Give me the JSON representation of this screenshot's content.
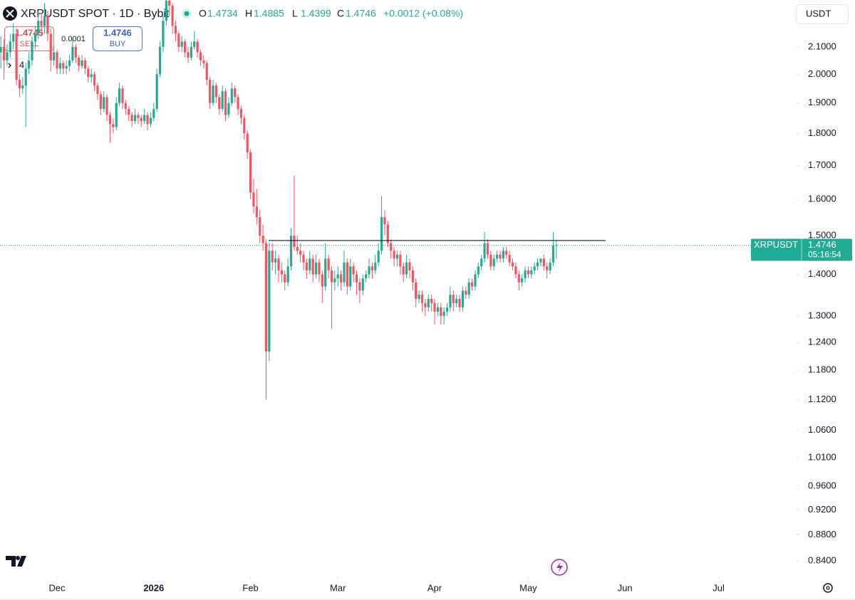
{
  "header": {
    "title": "XRPUSDT SPOT · 1D · Bybit",
    "ohlc_labels": [
      "O",
      "H",
      "L",
      "C"
    ],
    "change": "+0.0012 (+0.08%)"
  },
  "trade": {
    "sell_price": "1.4745",
    "sell": "SELL",
    "spread": "0.0001",
    "buy": "BUY",
    "indicators": "4",
    "currency": "USDT"
  },
  "price_tag": {
    "symbol": "XRPUSDT",
    "countdown": "05:16:54"
  },
  "chart_data": {
    "type": "candlestick",
    "log_scale": true,
    "up_color": "#22ab94",
    "down_color": "#f7525f",
    "ylim": [
      0.817,
      2.283
    ],
    "yticks": [
      {
        "value": 2.1,
        "label": "2.1000"
      },
      {
        "value": 2.0,
        "label": "2.0000"
      },
      {
        "value": 1.9,
        "label": "1.9000"
      },
      {
        "value": 1.8,
        "label": "1.8000"
      },
      {
        "value": 1.7,
        "label": "1.7000"
      },
      {
        "value": 1.6,
        "label": "1.6000"
      },
      {
        "value": 1.5,
        "label": "1.5000"
      },
      {
        "value": 1.4,
        "label": "1.4000"
      },
      {
        "value": 1.3,
        "label": "1.3000"
      },
      {
        "value": 1.24,
        "label": "1.2400"
      },
      {
        "value": 1.18,
        "label": "1.1800"
      },
      {
        "value": 1.12,
        "label": "1.1200"
      },
      {
        "value": 1.06,
        "label": "1.0600"
      },
      {
        "value": 1.01,
        "label": "1.0100"
      },
      {
        "value": 0.96,
        "label": "0.9600"
      },
      {
        "value": 0.92,
        "label": "0.9200"
      },
      {
        "value": 0.88,
        "label": "0.8800"
      },
      {
        "value": 0.84,
        "label": "0.8400"
      }
    ],
    "xlim": [
      -0.27,
      254.98
    ],
    "xticks": [
      {
        "value": 18,
        "label": "Dec"
      },
      {
        "value": 49,
        "label": "2026"
      },
      {
        "value": 80,
        "label": "Feb"
      },
      {
        "value": 108,
        "label": "Mar"
      },
      {
        "value": 139,
        "label": "Apr"
      },
      {
        "value": 169,
        "label": "May"
      },
      {
        "value": 200,
        "label": "Jun"
      },
      {
        "value": 230,
        "label": "Jul"
      }
    ],
    "hline": 1.487,
    "candles": [
      [
        2.08,
        2.14,
        2.02,
        2.1
      ],
      [
        2.1,
        2.13,
        1.98,
        2.05
      ],
      [
        2.05,
        2.11,
        2.03,
        2.08
      ],
      [
        2.08,
        2.15,
        2.06,
        2.12
      ],
      [
        2.12,
        2.19,
        2.09,
        2.15
      ],
      [
        2.15,
        2.17,
        1.96,
        1.98
      ],
      [
        1.98,
        2.0,
        1.92,
        1.95
      ],
      [
        1.95,
        1.99,
        1.93,
        1.96
      ],
      [
        1.96,
        2.04,
        1.82,
        2.02
      ],
      [
        2.02,
        2.08,
        2.0,
        2.05
      ],
      [
        2.05,
        2.14,
        2.03,
        2.12
      ],
      [
        2.12,
        2.18,
        2.09,
        2.15
      ],
      [
        2.15,
        2.24,
        2.13,
        2.2
      ],
      [
        2.2,
        2.23,
        2.14,
        2.18
      ],
      [
        2.18,
        2.27,
        2.15,
        2.22
      ],
      [
        2.22,
        2.24,
        2.12,
        2.15
      ],
      [
        2.15,
        2.17,
        2.01,
        2.05
      ],
      [
        2.05,
        2.1,
        2.03,
        2.08
      ],
      [
        2.08,
        2.09,
        2.0,
        2.02
      ],
      [
        2.02,
        2.06,
        2.0,
        2.04
      ],
      [
        2.04,
        2.05,
        2.0,
        2.02
      ],
      [
        2.02,
        2.05,
        2.0,
        2.03
      ],
      [
        2.03,
        2.07,
        2.01,
        2.05
      ],
      [
        2.05,
        2.13,
        2.04,
        2.1
      ],
      [
        2.1,
        2.11,
        2.04,
        2.06
      ],
      [
        2.06,
        2.07,
        2.01,
        2.03
      ],
      [
        2.03,
        2.07,
        2.02,
        2.05
      ],
      [
        2.05,
        2.06,
        2.0,
        2.02
      ],
      [
        2.02,
        2.03,
        1.97,
        1.99
      ],
      [
        1.99,
        2.02,
        1.97,
        2.0
      ],
      [
        2.0,
        2.01,
        1.94,
        1.96
      ],
      [
        1.96,
        1.97,
        1.91,
        1.93
      ],
      [
        1.93,
        1.94,
        1.86,
        1.88
      ],
      [
        1.88,
        1.94,
        1.87,
        1.92
      ],
      [
        1.92,
        1.93,
        1.84,
        1.86
      ],
      [
        1.86,
        1.87,
        1.77,
        1.83
      ],
      [
        1.83,
        1.85,
        1.8,
        1.82
      ],
      [
        1.82,
        1.92,
        1.81,
        1.9
      ],
      [
        1.9,
        1.97,
        1.89,
        1.95
      ],
      [
        1.95,
        1.96,
        1.88,
        1.9
      ],
      [
        1.9,
        1.91,
        1.86,
        1.88
      ],
      [
        1.88,
        1.89,
        1.84,
        1.86
      ],
      [
        1.86,
        1.87,
        1.82,
        1.84
      ],
      [
        1.84,
        1.88,
        1.83,
        1.86
      ],
      [
        1.86,
        1.87,
        1.83,
        1.85
      ],
      [
        1.85,
        1.86,
        1.82,
        1.84
      ],
      [
        1.84,
        1.88,
        1.83,
        1.86
      ],
      [
        1.86,
        1.87,
        1.81,
        1.83
      ],
      [
        1.83,
        1.87,
        1.82,
        1.85
      ],
      [
        1.85,
        1.9,
        1.84,
        1.88
      ],
      [
        1.88,
        2.02,
        1.87,
        2.0
      ],
      [
        2.0,
        2.12,
        1.99,
        2.1
      ],
      [
        2.1,
        2.22,
        2.08,
        2.2
      ],
      [
        2.2,
        2.3,
        2.18,
        2.28
      ],
      [
        2.28,
        2.3,
        2.22,
        2.26
      ],
      [
        2.26,
        2.27,
        2.15,
        2.18
      ],
      [
        2.18,
        2.2,
        2.12,
        2.15
      ],
      [
        2.15,
        2.16,
        2.08,
        2.1
      ],
      [
        2.1,
        2.14,
        2.08,
        2.12
      ],
      [
        2.12,
        2.13,
        2.06,
        2.08
      ],
      [
        2.08,
        2.1,
        2.04,
        2.06
      ],
      [
        2.06,
        2.12,
        2.05,
        2.1
      ],
      [
        2.1,
        2.16,
        2.09,
        2.12
      ],
      [
        2.12,
        2.13,
        2.06,
        2.08
      ],
      [
        2.08,
        2.09,
        2.03,
        2.05
      ],
      [
        2.05,
        2.07,
        2.02,
        2.04
      ],
      [
        2.04,
        2.05,
        1.96,
        1.98
      ],
      [
        1.98,
        1.99,
        1.88,
        1.9
      ],
      [
        1.9,
        1.98,
        1.89,
        1.96
      ],
      [
        1.96,
        1.97,
        1.9,
        1.92
      ],
      [
        1.92,
        1.93,
        1.86,
        1.88
      ],
      [
        1.88,
        1.96,
        1.87,
        1.94
      ],
      [
        1.94,
        1.95,
        1.84,
        1.86
      ],
      [
        1.86,
        1.92,
        1.85,
        1.9
      ],
      [
        1.9,
        1.97,
        1.89,
        1.95
      ],
      [
        1.95,
        1.96,
        1.9,
        1.92
      ],
      [
        1.92,
        1.93,
        1.86,
        1.88
      ],
      [
        1.88,
        1.89,
        1.83,
        1.85
      ],
      [
        1.85,
        1.86,
        1.78,
        1.8
      ],
      [
        1.8,
        1.81,
        1.72,
        1.74
      ],
      [
        1.74,
        1.75,
        1.6,
        1.62
      ],
      [
        1.62,
        1.66,
        1.56,
        1.58
      ],
      [
        1.58,
        1.63,
        1.53,
        1.55
      ],
      [
        1.55,
        1.57,
        1.48,
        1.5
      ],
      [
        1.5,
        1.53,
        1.46,
        1.48
      ],
      [
        1.48,
        1.49,
        1.12,
        1.22
      ],
      [
        1.22,
        1.48,
        1.2,
        1.46
      ],
      [
        1.46,
        1.48,
        1.41,
        1.43
      ],
      [
        1.43,
        1.46,
        1.4,
        1.44
      ],
      [
        1.44,
        1.45,
        1.38,
        1.41
      ],
      [
        1.41,
        1.43,
        1.38,
        1.4
      ],
      [
        1.4,
        1.41,
        1.36,
        1.38
      ],
      [
        1.38,
        1.44,
        1.37,
        1.42
      ],
      [
        1.42,
        1.52,
        1.41,
        1.5
      ],
      [
        1.5,
        1.67,
        1.46,
        1.47
      ],
      [
        1.47,
        1.5,
        1.45,
        1.46
      ],
      [
        1.46,
        1.48,
        1.43,
        1.45
      ],
      [
        1.45,
        1.46,
        1.41,
        1.43
      ],
      [
        1.43,
        1.44,
        1.39,
        1.41
      ],
      [
        1.41,
        1.46,
        1.4,
        1.44
      ],
      [
        1.44,
        1.45,
        1.38,
        1.4
      ],
      [
        1.4,
        1.45,
        1.39,
        1.43
      ],
      [
        1.43,
        1.44,
        1.38,
        1.4
      ],
      [
        1.4,
        1.41,
        1.33,
        1.37
      ],
      [
        1.37,
        1.48,
        1.36,
        1.44
      ],
      [
        1.44,
        1.45,
        1.39,
        1.41
      ],
      [
        1.41,
        1.42,
        1.27,
        1.38
      ],
      [
        1.38,
        1.41,
        1.36,
        1.39
      ],
      [
        1.39,
        1.42,
        1.37,
        1.4
      ],
      [
        1.4,
        1.41,
        1.36,
        1.38
      ],
      [
        1.38,
        1.46,
        1.37,
        1.43
      ],
      [
        1.43,
        1.44,
        1.35,
        1.37
      ],
      [
        1.37,
        1.44,
        1.36,
        1.42
      ],
      [
        1.42,
        1.43,
        1.38,
        1.4
      ],
      [
        1.4,
        1.41,
        1.35,
        1.38
      ],
      [
        1.38,
        1.39,
        1.33,
        1.36
      ],
      [
        1.36,
        1.4,
        1.35,
        1.39
      ],
      [
        1.39,
        1.41,
        1.38,
        1.4
      ],
      [
        1.4,
        1.44,
        1.39,
        1.42
      ],
      [
        1.42,
        1.43,
        1.39,
        1.41
      ],
      [
        1.41,
        1.45,
        1.4,
        1.43
      ],
      [
        1.43,
        1.48,
        1.42,
        1.46
      ],
      [
        1.46,
        1.61,
        1.45,
        1.55
      ],
      [
        1.55,
        1.57,
        1.5,
        1.53
      ],
      [
        1.53,
        1.54,
        1.47,
        1.48
      ],
      [
        1.48,
        1.49,
        1.44,
        1.46
      ],
      [
        1.46,
        1.47,
        1.42,
        1.44
      ],
      [
        1.44,
        1.46,
        1.42,
        1.45
      ],
      [
        1.45,
        1.46,
        1.4,
        1.42
      ],
      [
        1.42,
        1.43,
        1.38,
        1.4
      ],
      [
        1.4,
        1.45,
        1.39,
        1.43
      ],
      [
        1.43,
        1.44,
        1.39,
        1.41
      ],
      [
        1.41,
        1.42,
        1.36,
        1.38
      ],
      [
        1.38,
        1.39,
        1.32,
        1.34
      ],
      [
        1.34,
        1.36,
        1.33,
        1.35
      ],
      [
        1.35,
        1.36,
        1.31,
        1.33
      ],
      [
        1.33,
        1.34,
        1.3,
        1.32
      ],
      [
        1.32,
        1.35,
        1.31,
        1.34
      ],
      [
        1.34,
        1.35,
        1.31,
        1.33
      ],
      [
        1.33,
        1.34,
        1.28,
        1.31
      ],
      [
        1.31,
        1.33,
        1.3,
        1.32
      ],
      [
        1.32,
        1.33,
        1.28,
        1.3
      ],
      [
        1.3,
        1.32,
        1.28,
        1.31
      ],
      [
        1.31,
        1.33,
        1.3,
        1.32
      ],
      [
        1.32,
        1.37,
        1.31,
        1.35
      ],
      [
        1.35,
        1.36,
        1.31,
        1.33
      ],
      [
        1.33,
        1.35,
        1.32,
        1.34
      ],
      [
        1.34,
        1.35,
        1.31,
        1.32
      ],
      [
        1.32,
        1.37,
        1.31,
        1.36
      ],
      [
        1.36,
        1.37,
        1.34,
        1.35
      ],
      [
        1.35,
        1.39,
        1.34,
        1.38
      ],
      [
        1.38,
        1.39,
        1.36,
        1.37
      ],
      [
        1.37,
        1.41,
        1.36,
        1.4
      ],
      [
        1.4,
        1.43,
        1.39,
        1.42
      ],
      [
        1.42,
        1.45,
        1.41,
        1.44
      ],
      [
        1.44,
        1.51,
        1.43,
        1.48
      ],
      [
        1.48,
        1.49,
        1.44,
        1.45
      ],
      [
        1.45,
        1.46,
        1.41,
        1.42
      ],
      [
        1.42,
        1.45,
        1.41,
        1.44
      ],
      [
        1.44,
        1.46,
        1.43,
        1.45
      ],
      [
        1.45,
        1.46,
        1.43,
        1.44
      ],
      [
        1.44,
        1.47,
        1.43,
        1.46
      ],
      [
        1.46,
        1.47,
        1.44,
        1.45
      ],
      [
        1.45,
        1.46,
        1.42,
        1.43
      ],
      [
        1.43,
        1.44,
        1.41,
        1.42
      ],
      [
        1.42,
        1.43,
        1.39,
        1.4
      ],
      [
        1.4,
        1.41,
        1.36,
        1.38
      ],
      [
        1.38,
        1.4,
        1.37,
        1.39
      ],
      [
        1.39,
        1.42,
        1.38,
        1.41
      ],
      [
        1.41,
        1.42,
        1.39,
        1.4
      ],
      [
        1.4,
        1.42,
        1.39,
        1.41
      ],
      [
        1.41,
        1.43,
        1.4,
        1.42
      ],
      [
        1.42,
        1.44,
        1.41,
        1.43
      ],
      [
        1.43,
        1.44,
        1.42,
        1.44
      ],
      [
        1.44,
        1.45,
        1.41,
        1.42
      ],
      [
        1.42,
        1.43,
        1.39,
        1.41
      ],
      [
        1.41,
        1.44,
        1.4,
        1.43
      ],
      [
        1.43,
        1.51,
        1.42,
        1.4734
      ],
      [
        1.4734,
        1.4885,
        1.4399,
        1.4746
      ]
    ]
  }
}
